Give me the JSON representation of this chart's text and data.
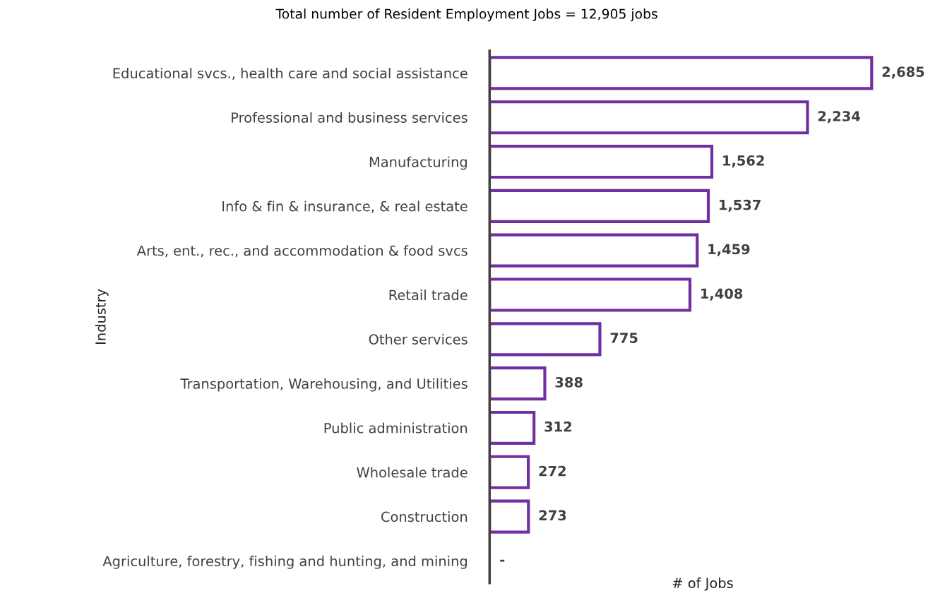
{
  "chart_data": {
    "type": "bar",
    "orientation": "horizontal",
    "title": "Total number of Resident Employment Jobs = 12,905 jobs",
    "xlabel": "# of Jobs",
    "ylabel": "Industry",
    "categories": [
      "Educational svcs., health care and social assistance",
      "Professional and business services",
      "Manufacturing",
      "Info & fin & insurance, & real estate",
      "Arts, ent., rec., and accommodation & food svcs",
      "Retail trade",
      "Other services",
      "Transportation, Warehousing, and Utilities",
      "Public administration",
      "Wholesale trade",
      "Construction",
      "Agriculture, forestry, fishing and hunting, and mining"
    ],
    "values": [
      2685,
      2234,
      1562,
      1537,
      1459,
      1408,
      775,
      388,
      312,
      272,
      273,
      0
    ],
    "value_labels": [
      "2,685",
      "2,234",
      "1,562",
      "1,537",
      "1,459",
      "1,408",
      "775",
      "388",
      "312",
      "272",
      "273",
      "-"
    ],
    "color": "#7030a0",
    "grid": false,
    "legend": false
  }
}
